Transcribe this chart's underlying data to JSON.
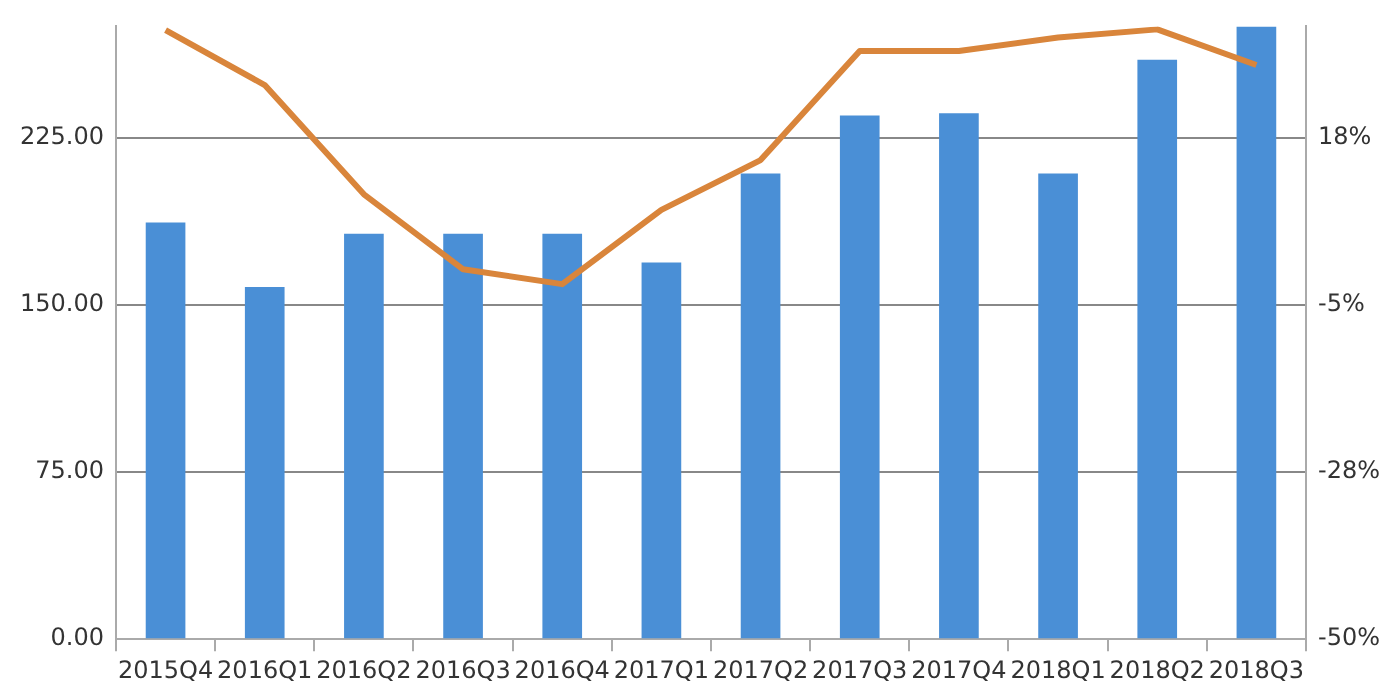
{
  "chart_data": {
    "type": "bar",
    "categories": [
      "2015Q4",
      "2016Q1",
      "2016Q2",
      "2016Q3",
      "2016Q4",
      "2017Q1",
      "2017Q2",
      "2017Q3",
      "2017Q4",
      "2018Q1",
      "2018Q2",
      "2018Q3"
    ],
    "series": [
      {
        "color": "#4a8fd6",
        "values": [
          187,
          158,
          182,
          182,
          182,
          169,
          209,
          235,
          236,
          209,
          260,
          275
        ]
      },
      {
        "type": "line",
        "axis": "y2",
        "color": "#d9853b",
        "values": [
          32,
          24.6,
          9.9,
          -0.2,
          -2.2,
          7.8,
          14.5,
          29.2,
          29.2,
          31,
          32.1,
          27.3
        ]
      }
    ],
    "ylim": [
      0,
      275
    ],
    "yticks": [
      {
        "value": 0,
        "label": "0.00"
      },
      {
        "value": 75,
        "label": "75.00"
      },
      {
        "value": 150,
        "label": "150.00"
      },
      {
        "value": 225,
        "label": "225.00"
      }
    ],
    "y2lim": [
      -50,
      32.5
    ],
    "y2ticks": [
      {
        "value": -50,
        "label": "-50%"
      },
      {
        "value": -27.5,
        "label": "-28%"
      },
      {
        "value": -5,
        "label": "-5%"
      },
      {
        "value": 17.5,
        "label": "18%"
      }
    ],
    "grid": "y",
    "legend": false,
    "marker": "none"
  }
}
